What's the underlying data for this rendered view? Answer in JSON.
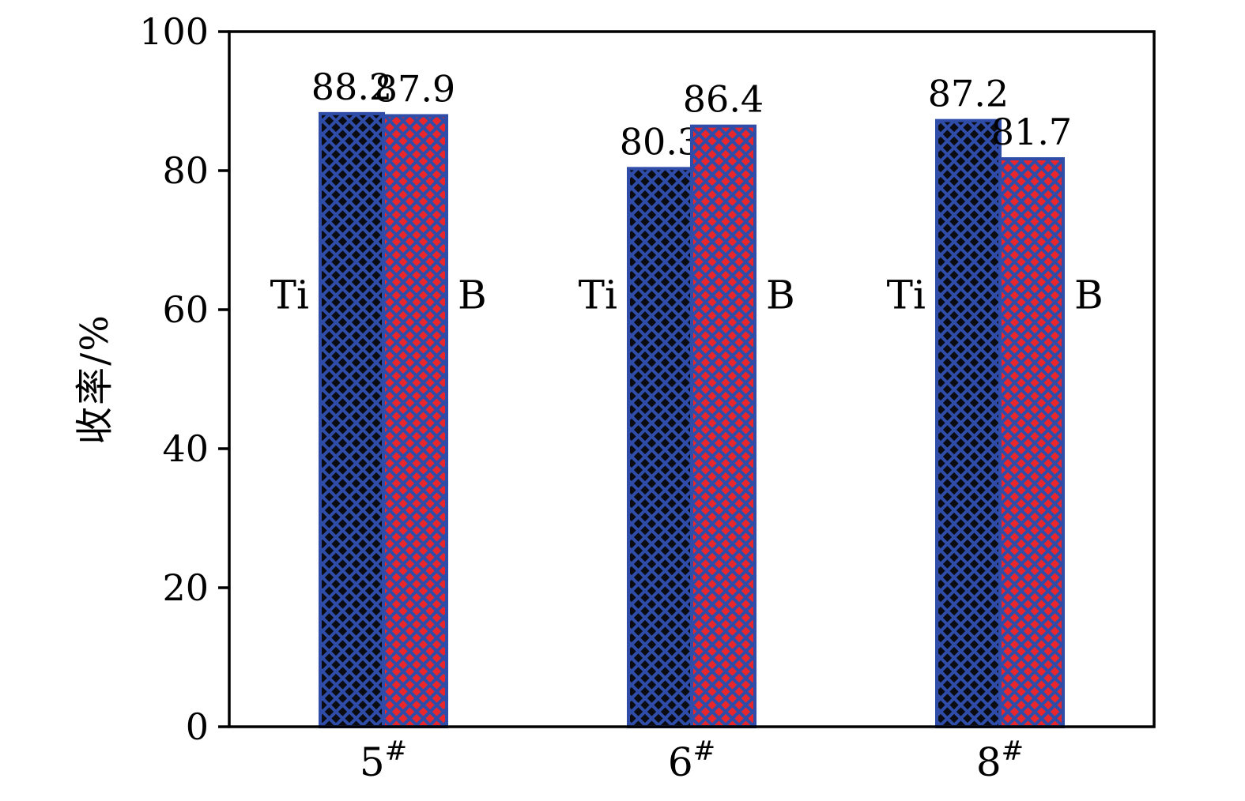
{
  "chart_data": {
    "type": "bar",
    "title": "",
    "xlabel": "",
    "ylabel": "收率/%",
    "ylim": [
      0,
      100
    ],
    "yticks": [
      0,
      20,
      40,
      60,
      80,
      100
    ],
    "categories": [
      "5#",
      "6#",
      "8#"
    ],
    "series": [
      {
        "name": "Ti",
        "values": [
          88.2,
          80.3,
          87.2
        ],
        "fill": "#0b0b12",
        "label_side": "left"
      },
      {
        "name": "B",
        "values": [
          87.9,
          86.4,
          81.7
        ],
        "fill": "#e8262c",
        "label_side": "right"
      }
    ],
    "value_labels": [
      "88.2",
      "87.9",
      "80.3",
      "86.4",
      "87.2",
      "81.7"
    ],
    "colors": {
      "axis": "#000000",
      "hatch": "#2f4da8",
      "bar_border": "#2f4da8",
      "text": "#000000",
      "background": "#ffffff"
    },
    "grid": false,
    "legend_position": "inline-beside-bars"
  }
}
